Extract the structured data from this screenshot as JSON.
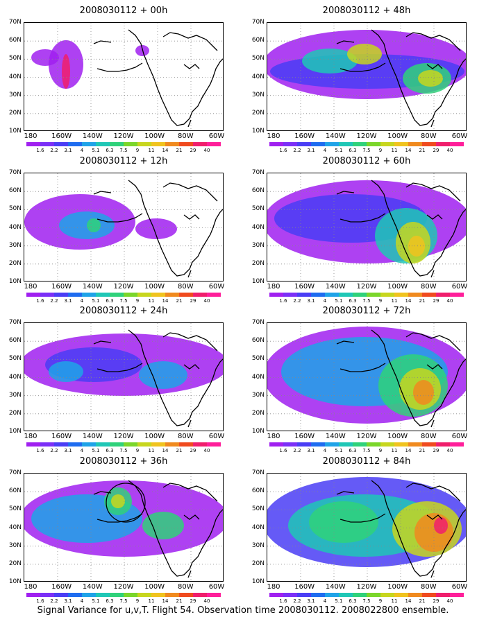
{
  "panels": [
    {
      "title": "2008030112 + 00h"
    },
    {
      "title": "2008030112 + 48h"
    },
    {
      "title": "2008030112 + 12h"
    },
    {
      "title": "2008030112 + 60h"
    },
    {
      "title": "2008030112 + 24h"
    },
    {
      "title": "2008030112 + 72h"
    },
    {
      "title": "2008030112 + 36h"
    },
    {
      "title": "2008030112 + 84h"
    }
  ],
  "y_axis_labels": [
    "70N",
    "60N",
    "50N",
    "40N",
    "30N",
    "20N",
    "10N"
  ],
  "x_axis_labels": [
    "180",
    "160W",
    "140W",
    "120W",
    "100W",
    "80W",
    "60W"
  ],
  "colorbar": {
    "labels": [
      "1.6",
      "2.2",
      "3.1",
      "4",
      "5.1",
      "6.3",
      "7.5",
      "9",
      "11",
      "14",
      "21",
      "29",
      "40"
    ],
    "colors": [
      "#a020f0",
      "#7b2ff7",
      "#4a3df5",
      "#1e6cf0",
      "#1fa3e8",
      "#1fc7b6",
      "#2fd27a",
      "#7ad62a",
      "#c7d61e",
      "#f0c31e",
      "#f08a1e",
      "#f04a1e",
      "#f01e6c",
      "#ff1e9a"
    ]
  },
  "caption": "Signal Variance for u,v,T. Flight 54. Observation time 2008030112. 2008022800 ensemble."
}
